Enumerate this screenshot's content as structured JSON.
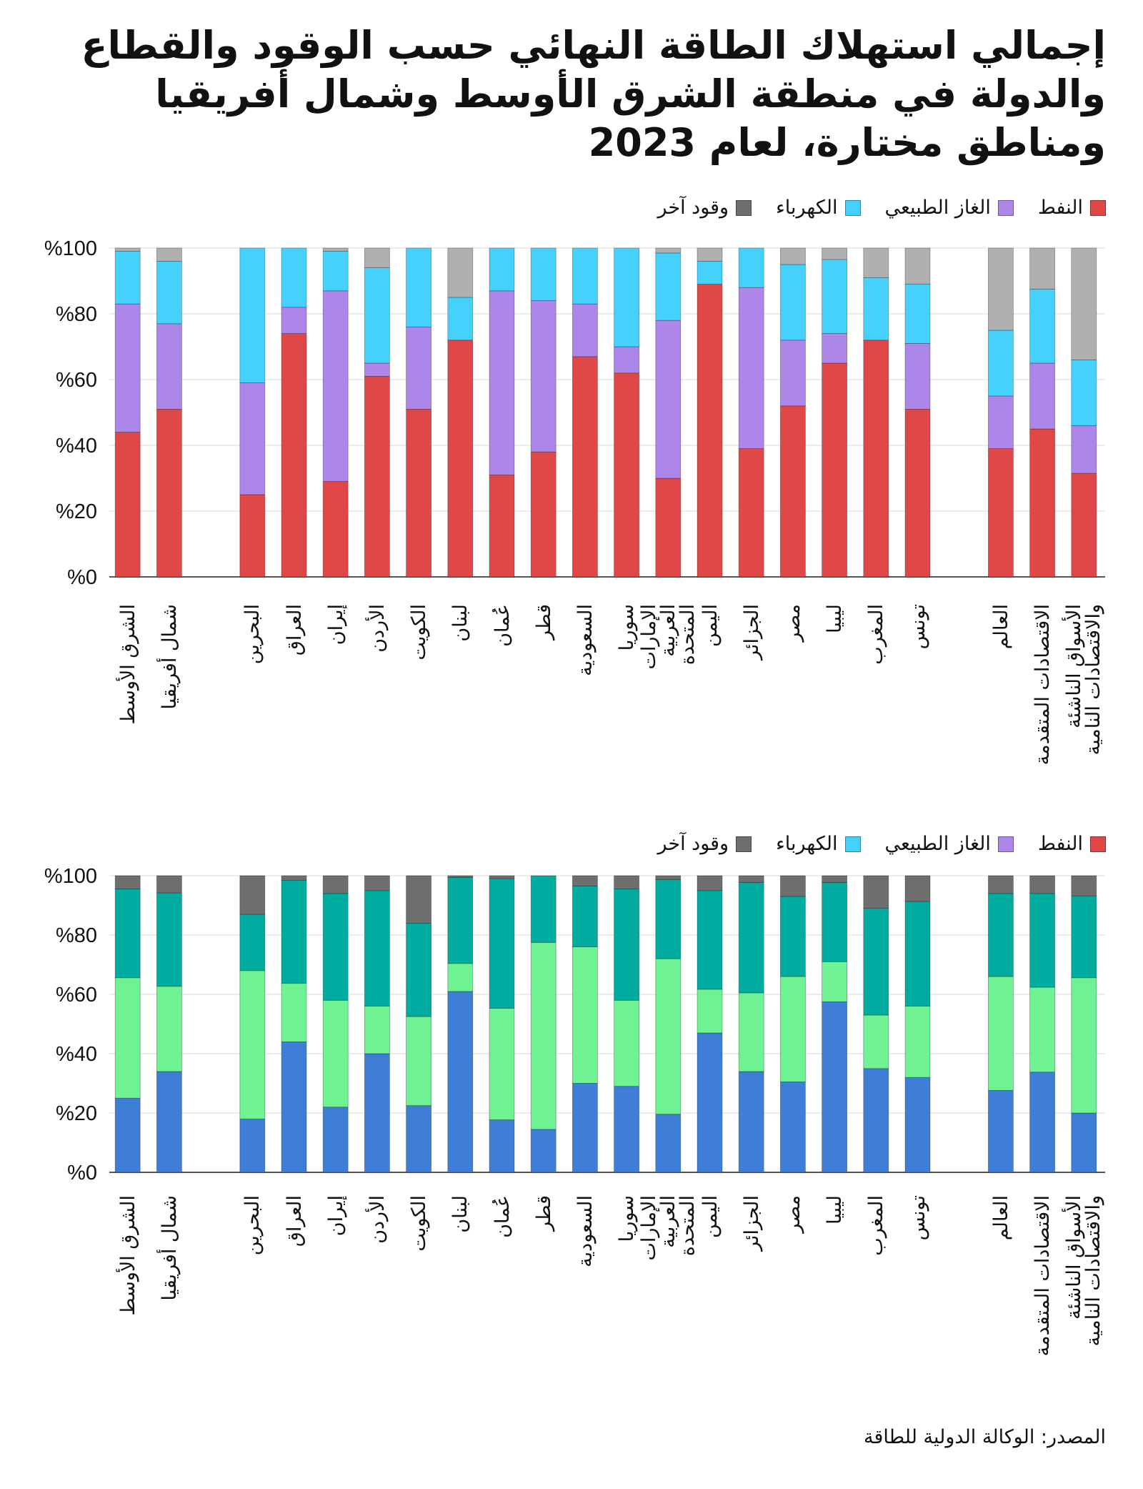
{
  "title": "إجمالي استهلاك الطاقة النهائي حسب الوقود والقطاع والدولة في منطقة الشرق الأوسط وشمال أفريقيا ومناطق مختارة، لعام 2023",
  "source": "المصدر: الوكالة الدولية للطاقة",
  "chart_data": [
    {
      "type": "bar",
      "stacked": true,
      "legend": [
        "النفط",
        "الغاز الطبيعي",
        "الكهرباء",
        "وقود آخر"
      ],
      "legend_colors": [
        "#e04848",
        "#ad86ea",
        "#46d0fc",
        "#6e6e6e"
      ],
      "legend_placement": "top-right",
      "categories": [
        "الشرق الأوسط",
        "شمال أفريقيا",
        "البحرين",
        "العراق",
        "إيران",
        "الأردن",
        "الكويت",
        "لبنان",
        "عُمان",
        "قطر",
        "السعودية",
        "سوريا",
        "الإمارات العربية المتحدة",
        "اليمن",
        "الجزائر",
        "مصر",
        "ليبيا",
        "المغرب",
        "تونس",
        "العالم",
        "الاقتصادات المتقدمة",
        "الأسواق الناشئة والاقتصادات النامية"
      ],
      "series": [
        {
          "name": "النفط",
          "color": "#e04848",
          "values": [
            44,
            51,
            25,
            74,
            29,
            61,
            51,
            72,
            31,
            38,
            67,
            62,
            30,
            89,
            39,
            52,
            65,
            72,
            51,
            39,
            45,
            31.5
          ]
        },
        {
          "name": "الغاز الطبيعي",
          "color": "#ad86ea",
          "values": [
            39,
            26,
            34,
            8,
            58,
            4,
            25,
            0,
            56,
            46,
            16,
            8,
            48,
            0,
            49,
            20,
            9,
            0,
            20,
            16,
            20,
            14.5
          ]
        },
        {
          "name": "الكهرباء",
          "color": "#46d0fc",
          "values": [
            16,
            19,
            41,
            18,
            12,
            29,
            24,
            13,
            13,
            16,
            17,
            30,
            20.5,
            7,
            12,
            23,
            22.5,
            19,
            18,
            20,
            22.5,
            20
          ]
        },
        {
          "name": "وقود آخر",
          "color": "#b0b0b0",
          "values": [
            1,
            4,
            0,
            0,
            1,
            6,
            0,
            15,
            0,
            0,
            0,
            0,
            1.5,
            4,
            0,
            5,
            3.5,
            9,
            11,
            25,
            12.5,
            34
          ]
        }
      ],
      "yticks": [
        "%0",
        "%20",
        "%40",
        "%60",
        "%80",
        "%100"
      ],
      "ylim": [
        0,
        100
      ],
      "grid": true
    },
    {
      "type": "bar",
      "stacked": true,
      "legend": [
        "النفط",
        "الغاز الطبيعي",
        "الكهرباء",
        "وقود آخر"
      ],
      "legend_colors": [
        "#e04848",
        "#ad86ea",
        "#46d0fc",
        "#6e6e6e"
      ],
      "legend_placement": "top-right",
      "categories": [
        "الشرق الأوسط",
        "شمال أفريقيا",
        "البحرين",
        "العراق",
        "إيران",
        "الأردن",
        "الكويت",
        "لبنان",
        "عُمان",
        "قطر",
        "السعودية",
        "سوريا",
        "الإمارات العربية المتحدة",
        "اليمن",
        "الجزائر",
        "مصر",
        "ليبيا",
        "المغرب",
        "تونس",
        "العالم",
        "الاقتصادات المتقدمة",
        "الأسواق الناشئة والاقتصادات النامية"
      ],
      "series": [
        {
          "color": "#3f7ed6",
          "values": [
            25,
            34,
            18,
            44,
            22,
            40,
            22.5,
            61,
            17.7,
            14.5,
            30,
            29,
            19.6,
            47,
            34,
            30.5,
            57.5,
            35,
            32,
            27.6,
            33.8,
            20
          ]
        },
        {
          "color": "#6ff292",
          "values": [
            40.6,
            28.7,
            50,
            19.7,
            36,
            16,
            30,
            9.4,
            37.6,
            63,
            46,
            29,
            52.4,
            14.7,
            26.5,
            35.5,
            13.5,
            18,
            24,
            38.4,
            28.6,
            45.6
          ]
        },
        {
          "color": "#00aca0",
          "values": [
            29.9,
            31.5,
            19,
            34.7,
            36,
            39,
            31.5,
            29,
            43.7,
            22.5,
            20.5,
            37.5,
            26.7,
            33.3,
            37.2,
            27,
            26.7,
            36,
            35.3,
            28,
            31.6,
            27.6
          ]
        },
        {
          "color": "#6e6e6e",
          "values": [
            4.5,
            5.8,
            13,
            1.6,
            6,
            5,
            16,
            0.6,
            1,
            0,
            3.5,
            4.5,
            1.3,
            5,
            2.3,
            7,
            2.3,
            11,
            8.7,
            6,
            6,
            6.8
          ]
        }
      ],
      "yticks": [
        "%0",
        "%20",
        "%40",
        "%60",
        "%80",
        "%100"
      ],
      "ylim": [
        0,
        100
      ],
      "grid": true
    }
  ]
}
